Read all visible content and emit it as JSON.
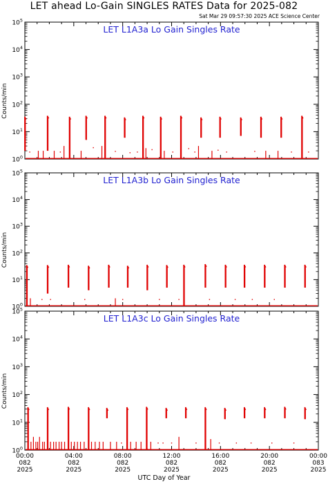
{
  "title": "LET ahead Lo-Gain SINGLES RATES Data for 2025-082",
  "timestamp": "Sat Mar 29 09:57:30 2025 ACE Science Center",
  "x_axis_title": "UTC Day of Year",
  "chart_data": [
    {
      "type": "line",
      "panel_title": "LET L1A3a Lo Gain Singles Rate",
      "ylabel": "Counts/min",
      "yscale": "log",
      "ylim": [
        1,
        100000
      ],
      "xlim": [
        0,
        24
      ],
      "y_tick_labels": [
        "10^0",
        "10^1",
        "10^2",
        "10^3",
        "10^4",
        "10^5"
      ],
      "x_tick_labels": [],
      "line_color": "#e00000",
      "baseline": 1,
      "spikes": [
        {
          "t": 0.0,
          "top": 35,
          "bottom": 2
        },
        {
          "t": 1.85,
          "top": 38,
          "bottom": 2
        },
        {
          "t": 3.65,
          "top": 35,
          "bottom": 1
        },
        {
          "t": 5.0,
          "top": 38,
          "bottom": 5
        },
        {
          "t": 6.55,
          "top": 38,
          "bottom": 1
        },
        {
          "t": 8.15,
          "top": 33,
          "bottom": 6
        },
        {
          "t": 9.65,
          "top": 38,
          "bottom": 1
        },
        {
          "t": 11.1,
          "top": 35,
          "bottom": 1
        },
        {
          "t": 12.75,
          "top": 38,
          "bottom": 1
        },
        {
          "t": 14.4,
          "top": 33,
          "bottom": 6
        },
        {
          "t": 15.95,
          "top": 35,
          "bottom": 6
        },
        {
          "t": 17.65,
          "top": 33,
          "bottom": 7
        },
        {
          "t": 19.3,
          "top": 35,
          "bottom": 6
        },
        {
          "t": 20.95,
          "top": 35,
          "bottom": 6
        },
        {
          "t": 22.65,
          "top": 38,
          "bottom": 1
        }
      ],
      "baseline_blips": [
        {
          "t": 1.1,
          "top": 2
        },
        {
          "t": 1.5,
          "top": 2
        },
        {
          "t": 2.4,
          "top": 2
        },
        {
          "t": 3.2,
          "top": 3
        },
        {
          "t": 4.6,
          "top": 2
        },
        {
          "t": 6.3,
          "top": 3
        },
        {
          "t": 9.9,
          "top": 2.5
        },
        {
          "t": 11.4,
          "top": 2
        },
        {
          "t": 14.2,
          "top": 3
        },
        {
          "t": 15.3,
          "top": 2
        },
        {
          "t": 19.7,
          "top": 2
        },
        {
          "t": 20.7,
          "top": 2
        }
      ],
      "scatter_points": [
        {
          "t": 0.4,
          "y": 1.8
        },
        {
          "t": 2.9,
          "y": 1.8
        },
        {
          "t": 5.6,
          "y": 2.6
        },
        {
          "t": 7.4,
          "y": 1.9
        },
        {
          "t": 8.6,
          "y": 1.7
        },
        {
          "t": 9.2,
          "y": 1.8
        },
        {
          "t": 10.4,
          "y": 2.2
        },
        {
          "t": 12.1,
          "y": 1.8
        },
        {
          "t": 13.4,
          "y": 2.4
        },
        {
          "t": 13.9,
          "y": 1.8
        },
        {
          "t": 15.8,
          "y": 2.1
        },
        {
          "t": 16.5,
          "y": 1.8
        },
        {
          "t": 18.8,
          "y": 1.9
        },
        {
          "t": 21.8,
          "y": 1.8
        },
        {
          "t": 23.2,
          "y": 1.8
        }
      ]
    },
    {
      "type": "line",
      "panel_title": "LET L1A3b Lo Gain Singles Rate",
      "ylabel": "Counts/min",
      "yscale": "log",
      "ylim": [
        1,
        100000
      ],
      "xlim": [
        0,
        24
      ],
      "y_tick_labels": [
        "10^0",
        "10^1",
        "10^2",
        "10^3",
        "10^4",
        "10^5"
      ],
      "x_tick_labels": [],
      "line_color": "#e00000",
      "baseline": 1,
      "spikes": [
        {
          "t": 0.15,
          "top": 35,
          "bottom": 1
        },
        {
          "t": 1.85,
          "top": 35,
          "bottom": 3
        },
        {
          "t": 3.55,
          "top": 36,
          "bottom": 5
        },
        {
          "t": 5.2,
          "top": 33,
          "bottom": 4
        },
        {
          "t": 6.85,
          "top": 36,
          "bottom": 5
        },
        {
          "t": 8.4,
          "top": 33,
          "bottom": 5
        },
        {
          "t": 10.0,
          "top": 36,
          "bottom": 4
        },
        {
          "t": 11.6,
          "top": 35,
          "bottom": 5
        },
        {
          "t": 13.0,
          "top": 36,
          "bottom": 1
        },
        {
          "t": 14.75,
          "top": 38,
          "bottom": 5
        },
        {
          "t": 16.4,
          "top": 36,
          "bottom": 5
        },
        {
          "t": 17.95,
          "top": 36,
          "bottom": 5
        },
        {
          "t": 19.6,
          "top": 36,
          "bottom": 5
        },
        {
          "t": 21.25,
          "top": 36,
          "bottom": 5
        },
        {
          "t": 22.9,
          "top": 36,
          "bottom": 5
        }
      ],
      "baseline_blips": [
        {
          "t": 0.45,
          "top": 2
        },
        {
          "t": 7.4,
          "top": 2
        }
      ],
      "scatter_points": [
        {
          "t": 1.4,
          "y": 1.8
        },
        {
          "t": 2.1,
          "y": 1.8
        },
        {
          "t": 4.9,
          "y": 1.8
        },
        {
          "t": 8.0,
          "y": 1.8
        },
        {
          "t": 11.0,
          "y": 1.8
        },
        {
          "t": 12.6,
          "y": 1.8
        },
        {
          "t": 15.1,
          "y": 1.8
        },
        {
          "t": 17.2,
          "y": 1.8
        },
        {
          "t": 18.6,
          "y": 1.8
        },
        {
          "t": 20.4,
          "y": 1.8
        }
      ]
    },
    {
      "type": "line",
      "panel_title": "LET L1A3c Lo Gain Singles Rate",
      "ylabel": "Counts/min",
      "yscale": "log",
      "ylim": [
        1,
        100000
      ],
      "xlim": [
        0,
        24
      ],
      "y_tick_labels": [
        "10^0",
        "10^1",
        "10^2",
        "10^3",
        "10^4",
        "10^5"
      ],
      "x_tick_labels": [
        [
          "00:00",
          "082",
          "2025"
        ],
        [
          "04:00",
          "082",
          "2025"
        ],
        [
          "08:00",
          "082",
          "2025"
        ],
        [
          "12:00",
          "082",
          "2025"
        ],
        [
          "16:00",
          "082",
          "2025"
        ],
        [
          "20:00",
          "082",
          "2025"
        ],
        [
          "00:00",
          "083",
          "2025"
        ]
      ],
      "line_color": "#e00000",
      "baseline": 1,
      "spikes": [
        {
          "t": 0.25,
          "top": 35,
          "bottom": 1
        },
        {
          "t": 1.85,
          "top": 35,
          "bottom": 1
        },
        {
          "t": 3.55,
          "top": 36,
          "bottom": 1
        },
        {
          "t": 5.2,
          "top": 35,
          "bottom": 1
        },
        {
          "t": 6.7,
          "top": 33,
          "bottom": 14
        },
        {
          "t": 8.35,
          "top": 35,
          "bottom": 1
        },
        {
          "t": 9.95,
          "top": 36,
          "bottom": 1
        },
        {
          "t": 11.55,
          "top": 33,
          "bottom": 14
        },
        {
          "t": 13.15,
          "top": 35,
          "bottom": 14
        },
        {
          "t": 14.75,
          "top": 35,
          "bottom": 1
        },
        {
          "t": 16.35,
          "top": 33,
          "bottom": 13
        },
        {
          "t": 17.95,
          "top": 35,
          "bottom": 14
        },
        {
          "t": 19.6,
          "top": 35,
          "bottom": 14
        },
        {
          "t": 21.25,
          "top": 36,
          "bottom": 14
        },
        {
          "t": 22.9,
          "top": 35,
          "bottom": 13
        }
      ],
      "baseline_blips": [
        {
          "t": 0.5,
          "top": 2
        },
        {
          "t": 0.7,
          "top": 3
        },
        {
          "t": 0.9,
          "top": 2
        },
        {
          "t": 1.05,
          "top": 2
        },
        {
          "t": 1.2,
          "top": 3
        },
        {
          "t": 1.45,
          "top": 2
        },
        {
          "t": 1.6,
          "top": 2
        },
        {
          "t": 2.1,
          "top": 2
        },
        {
          "t": 2.35,
          "top": 2
        },
        {
          "t": 2.55,
          "top": 2
        },
        {
          "t": 2.8,
          "top": 2
        },
        {
          "t": 3.0,
          "top": 2
        },
        {
          "t": 3.25,
          "top": 2
        },
        {
          "t": 3.8,
          "top": 2
        },
        {
          "t": 4.05,
          "top": 2
        },
        {
          "t": 4.3,
          "top": 2
        },
        {
          "t": 4.55,
          "top": 2
        },
        {
          "t": 4.85,
          "top": 2
        },
        {
          "t": 5.45,
          "top": 2
        },
        {
          "t": 5.75,
          "top": 2
        },
        {
          "t": 6.1,
          "top": 2
        },
        {
          "t": 6.4,
          "top": 2
        },
        {
          "t": 7.0,
          "top": 2
        },
        {
          "t": 7.5,
          "top": 2
        },
        {
          "t": 8.65,
          "top": 2
        },
        {
          "t": 9.1,
          "top": 2
        },
        {
          "t": 9.5,
          "top": 2
        },
        {
          "t": 10.3,
          "top": 2
        },
        {
          "t": 12.6,
          "top": 3
        },
        {
          "t": 15.2,
          "top": 2.5
        }
      ],
      "scatter_points": [
        {
          "t": 7.9,
          "y": 1.8
        },
        {
          "t": 10.9,
          "y": 1.8
        },
        {
          "t": 11.3,
          "y": 1.8
        },
        {
          "t": 12.0,
          "y": 1.8
        },
        {
          "t": 14.0,
          "y": 1.8
        },
        {
          "t": 15.9,
          "y": 1.8
        },
        {
          "t": 17.3,
          "y": 1.8
        },
        {
          "t": 18.5,
          "y": 1.8
        },
        {
          "t": 20.2,
          "y": 1.8
        },
        {
          "t": 22.0,
          "y": 1.8
        }
      ]
    }
  ]
}
